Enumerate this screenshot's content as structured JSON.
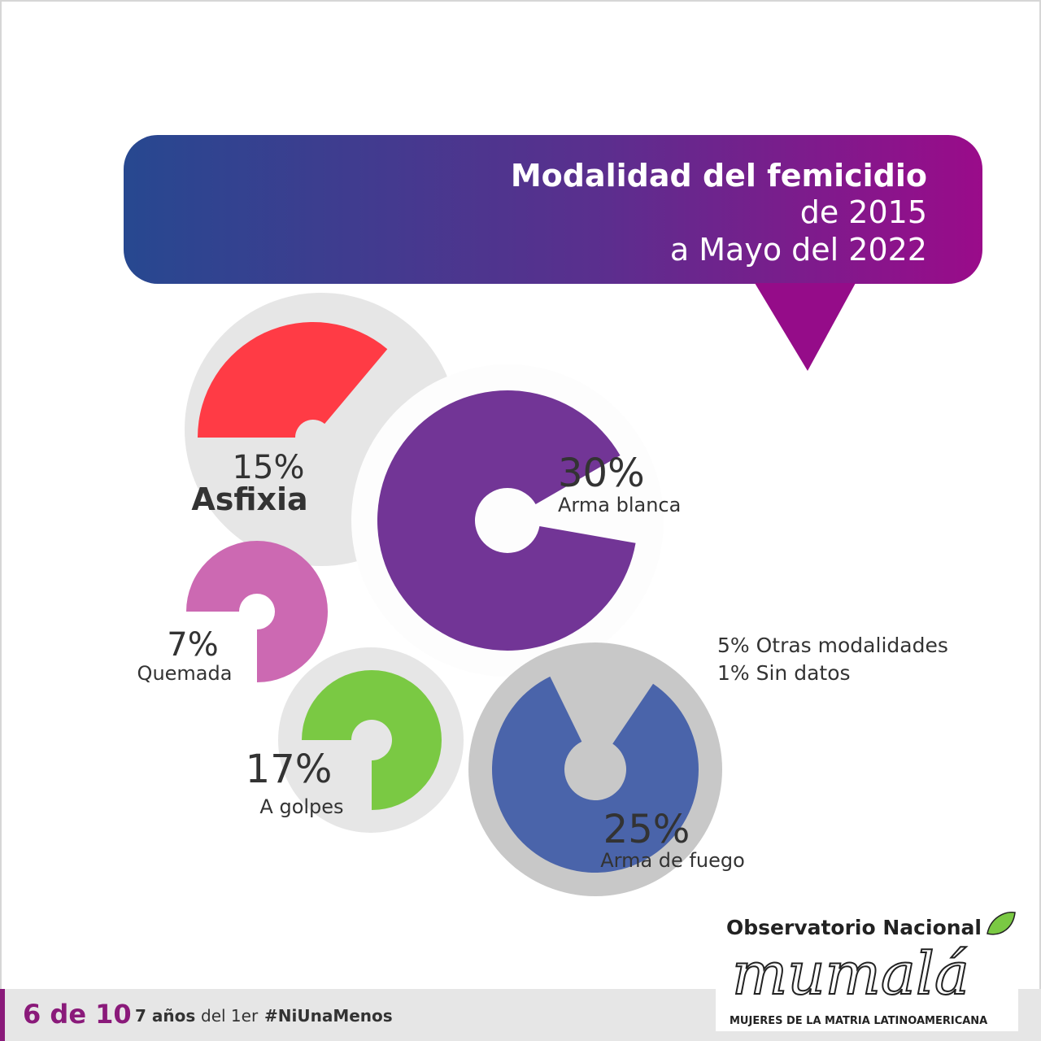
{
  "title": {
    "main": "Modalidad del femicidio",
    "line2": "de 2015",
    "line3": "a Mayo del 2022"
  },
  "chart_data": {
    "type": "pie",
    "title": "Modalidad del femicidio de 2015 a Mayo del 2022",
    "slices": [
      {
        "label": "Asfixia",
        "value": 15,
        "display": "15%",
        "color": "#ff3b45"
      },
      {
        "label": "Arma blanca",
        "value": 30,
        "display": "30%",
        "color": "#723596"
      },
      {
        "label": "Quemada",
        "value": 7,
        "display": "7%",
        "color": "#cc69b2"
      },
      {
        "label": "A golpes",
        "value": 17,
        "display": "17%",
        "color": "#7ac943"
      },
      {
        "label": "Arma de fuego",
        "value": 25,
        "display": "25%",
        "color": "#4a64aa"
      }
    ],
    "notes": [
      "5% Otras modalidades",
      "1% Sin datos"
    ]
  },
  "logo": {
    "top": "Observatorio Nacional",
    "mid": "mumalá",
    "bottom": "MUJERES DE LA MATRIA LATINOAMERICANA",
    "leaf_color": "#7ac943"
  },
  "footer": {
    "counter": "6 de 10",
    "years": "7 años",
    "del": "del 1er",
    "hashtag": "#NiUnaMenos"
  }
}
